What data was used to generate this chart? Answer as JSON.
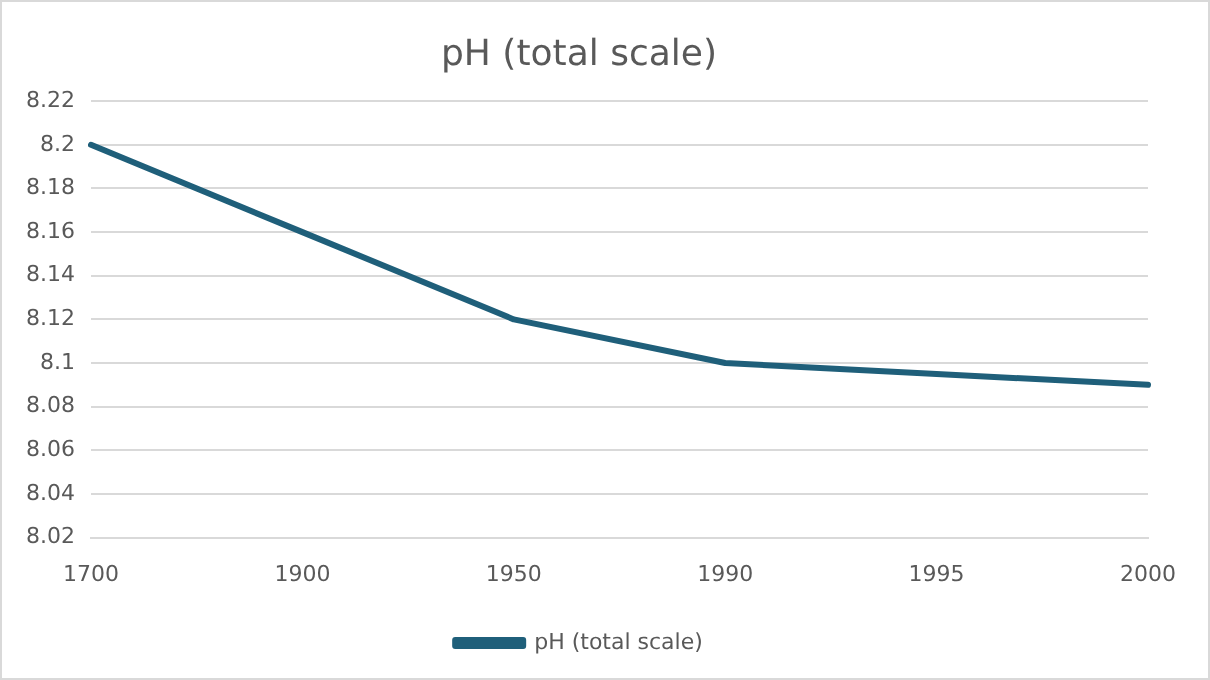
{
  "chart_data": {
    "type": "line",
    "title": "pH (total scale)",
    "categories": [
      "1700",
      "1900",
      "1950",
      "1990",
      "1995",
      "2000"
    ],
    "series": [
      {
        "name": "pH (total scale)",
        "color": "#1f5f7a",
        "values": [
          8.2,
          8.16,
          8.12,
          8.1,
          8.095,
          8.09
        ]
      }
    ],
    "ylim": [
      8.02,
      8.22
    ],
    "yticks": [
      8.02,
      8.04,
      8.06,
      8.08,
      8.1,
      8.12,
      8.14,
      8.16,
      8.18,
      8.2,
      8.22
    ],
    "grid": "y",
    "legend": "bottom",
    "marker": "none",
    "line_style": "solid"
  }
}
